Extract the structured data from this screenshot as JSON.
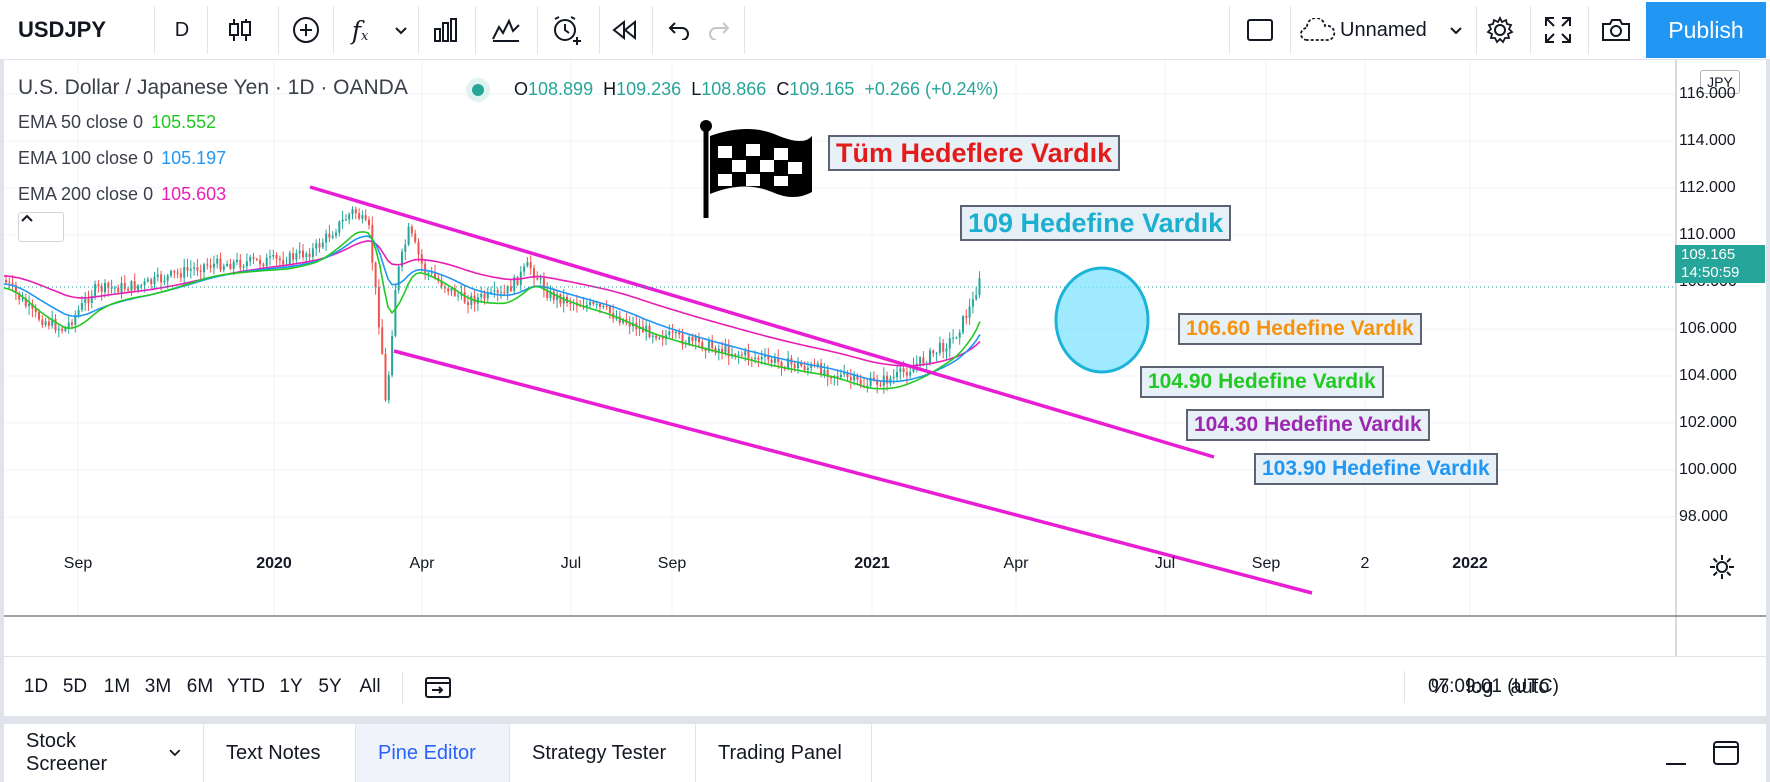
{
  "toolbar": {
    "symbol": "USDJPY",
    "interval": "D",
    "layout_name": "Unnamed",
    "publish_label": "Publish"
  },
  "legend": {
    "title": "U.S. Dollar / Japanese Yen · 1D · OANDA",
    "ohlc": {
      "o_key": "O",
      "o": "108.899",
      "h_key": "H",
      "h": "109.236",
      "l_key": "L",
      "l": "108.866",
      "c_key": "C",
      "c": "109.165",
      "change": "+0.266 (+0.24%)"
    },
    "indicators": [
      {
        "label": "EMA 50 close 0",
        "value": "105.552",
        "color": "#22c922"
      },
      {
        "label": "EMA 100 close 0",
        "value": "105.197",
        "color": "#2196f3"
      },
      {
        "label": "EMA 200 close 0",
        "value": "105.603",
        "color": "#e91eb4"
      }
    ]
  },
  "annotations": {
    "main": "Tüm Hedeflere Vardık",
    "t109": "109 Hedefine Vardık",
    "t10660": "106.60 Hedefine Vardık",
    "t10490": "104.90 Hedefine Vardık",
    "t10430": "104.30 Hedefine Vardık",
    "t10390": "103.90 Hedefine Vardık"
  },
  "price_axis": {
    "currency": "JPY",
    "labels": [
      "116.000",
      "114.000",
      "112.000",
      "110.000",
      "108.000",
      "106.000",
      "104.000",
      "102.000",
      "100.000",
      "98.000"
    ],
    "last_price": "109.165",
    "countdown": "14:50:59"
  },
  "time_axis": {
    "labels": [
      "Sep",
      "2020",
      "Apr",
      "Jul",
      "Sep",
      "2021",
      "Apr",
      "Jul",
      "Sep",
      "2",
      "2022"
    ]
  },
  "range_bar": {
    "ranges": [
      "1D",
      "5D",
      "1M",
      "3M",
      "6M",
      "YTD",
      "1Y",
      "5Y",
      "All"
    ],
    "clock": "07:09:01 (UTC)",
    "percent": "%",
    "log": "log",
    "auto": "auto"
  },
  "panel_tabs": [
    "Stock Screener",
    "Text Notes",
    "Pine Editor",
    "Strategy Tester",
    "Trading Panel"
  ],
  "colors": {
    "up": "#26a69a",
    "down": "#ef5350",
    "trendline": "#e91ed4",
    "accent": "#2196f3"
  }
}
